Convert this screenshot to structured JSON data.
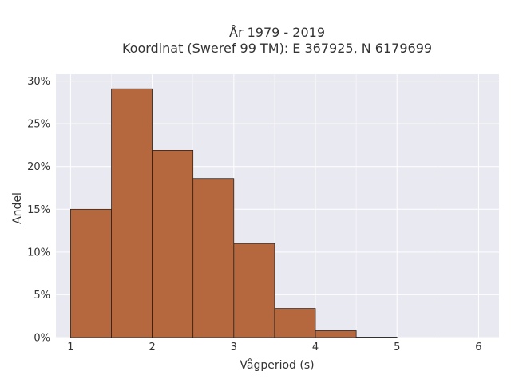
{
  "chart_data": {
    "type": "bar",
    "title_line1": "År 1979 - 2019",
    "title_line2": "Koordinat (Sweref 99 TM): E 367925, N 6179699",
    "xlabel": "Vågperiod (s)",
    "ylabel": "Andel",
    "bin_edges": [
      1.0,
      1.5,
      2.0,
      2.5,
      3.0,
      3.5,
      4.0,
      4.5,
      5.0
    ],
    "values": [
      15.0,
      29.1,
      21.9,
      18.6,
      11.0,
      3.4,
      0.8,
      0.05
    ],
    "xlim": [
      0.82,
      6.25
    ],
    "ylim": [
      0,
      30.8
    ],
    "xticks": [
      1,
      2,
      3,
      4,
      5,
      6
    ],
    "xtick_labels": [
      "1",
      "2",
      "3",
      "4",
      "5",
      "6"
    ],
    "yticks": [
      0,
      5,
      10,
      15,
      20,
      25,
      30
    ],
    "ytick_labels": [
      "0%",
      "5%",
      "10%",
      "15%",
      "20%",
      "25%",
      "30%"
    ],
    "grid": true,
    "colors": {
      "bar": "#b5673d",
      "plot_background": "#e9e9f1",
      "grid": "#ffffff"
    }
  }
}
